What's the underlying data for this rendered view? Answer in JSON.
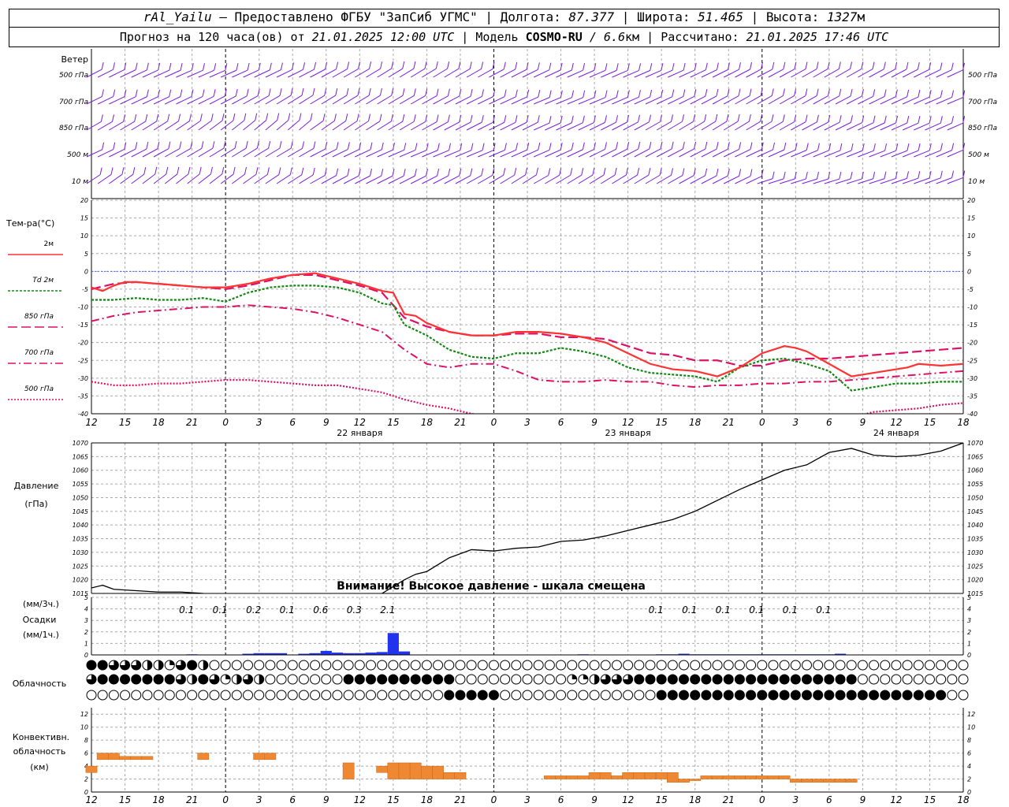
{
  "header": {
    "station": "rAl_Yailu",
    "dash": " – ",
    "provider": "Предоставлено ФГБУ \"ЗапСиб УГМС\"",
    "sep": " | ",
    "lon_label": "Долгота: ",
    "lon": "87.377",
    "lat_label": "Широта: ",
    "lat": "51.465",
    "alt_label": "Высота: ",
    "alt": "1327",
    "alt_unit": "м",
    "forecast_label": "Прогноз на 120 часа(ов) от ",
    "forecast_time": "21.01.2025 12:00 UTC",
    "model_label": "Модель ",
    "model": "COSMO-RU",
    "model_res": " / 6.6",
    "model_res_unit": "км",
    "calc_label": "Рассчитано: ",
    "calc_time": "21.01.2025 17:46 UTC"
  },
  "panels": {
    "wind": {
      "title": "Ветер",
      "levels": [
        "500 гПа",
        "700 гПа",
        "850 гПа",
        "500 м",
        "10  м"
      ]
    },
    "temp": {
      "title": "Тем-ра(°C)",
      "legend": [
        {
          "label": "2м",
          "color": "#ff3333",
          "dash": ""
        },
        {
          "label": "Td  2м",
          "color": "#118811",
          "dash": "3,2"
        },
        {
          "label": "850 гПа",
          "color": "#dd1166",
          "dash": "12,5"
        },
        {
          "label": "700 гПа",
          "color": "#dd1166",
          "dash": "10,4,2,4"
        },
        {
          "label": "500 гПа",
          "color": "#dd1166",
          "dash": "2,2"
        }
      ],
      "yticks": [
        20,
        15,
        10,
        5,
        0,
        -5,
        -10,
        -15,
        -20,
        -25,
        -30,
        -35,
        -40
      ]
    },
    "pressure": {
      "title1": "Давление",
      "title2": "(гПа)",
      "yticks": [
        1070,
        1065,
        1060,
        1055,
        1050,
        1045,
        1040,
        1035,
        1030,
        1025,
        1020,
        1015
      ],
      "warning": "Внимание! Высокое давление - шкала смещена"
    },
    "precip": {
      "unit3": "(мм/3ч.)",
      "title": "Осадки",
      "unit1": "(мм/1ч.)",
      "yticks": [
        5,
        4,
        3,
        2,
        1,
        0
      ],
      "labels": [
        {
          "h": 9,
          "text": "0.1"
        },
        {
          "h": 12,
          "text": "0.1"
        },
        {
          "h": 15,
          "text": "0.2"
        },
        {
          "h": 18,
          "text": "0.1"
        },
        {
          "h": 21,
          "text": "0.6"
        },
        {
          "h": 24,
          "text": "0.3"
        },
        {
          "h": 27,
          "text": "2.1"
        },
        {
          "h": 51,
          "text": "0.1"
        },
        {
          "h": 54,
          "text": "0.1"
        },
        {
          "h": 57,
          "text": "0.1"
        },
        {
          "h": 60,
          "text": "0.1"
        },
        {
          "h": 63,
          "text": "0.1"
        },
        {
          "h": 66,
          "text": "0.1"
        }
      ]
    },
    "cloud": {
      "title": "Облачность"
    },
    "conv": {
      "title1": "Конвективн.",
      "title2": "облачность",
      "title3": "(км)",
      "yticks": [
        12,
        10,
        8,
        6,
        4,
        2,
        0
      ]
    },
    "xaxis": {
      "hour_labels": [
        "12",
        "15",
        "18",
        "21",
        "0",
        "3",
        "6",
        "9",
        "12",
        "15",
        "18",
        "21",
        "0",
        "3",
        "6",
        "9",
        "12",
        "15",
        "18",
        "21",
        "0",
        "3",
        "6",
        "9",
        "12",
        "15",
        "18"
      ],
      "days": [
        {
          "h": 24,
          "text": "22 января"
        },
        {
          "h": 48,
          "text": "23 января"
        },
        {
          "h": 72,
          "text": "24 января"
        }
      ]
    }
  },
  "chart_data": [
    {
      "type": "line",
      "title": "Тем-ра(°C)",
      "x_unit": "hours from 21.01.2025 12:00 UTC",
      "ylim": [
        -40,
        20
      ],
      "series": [
        {
          "name": "2м",
          "x": [
            0,
            1,
            2,
            3,
            4,
            6,
            8,
            10,
            12,
            14,
            16,
            18,
            20,
            22,
            24,
            26,
            27,
            28,
            29,
            30,
            32,
            34,
            36,
            38,
            40,
            42,
            44,
            46,
            48,
            50,
            52,
            54,
            56,
            58,
            60,
            62,
            63,
            64,
            66,
            68,
            70,
            72,
            73,
            74,
            76,
            78
          ],
          "values": [
            -4.5,
            -5.5,
            -4,
            -3,
            -3,
            -3.5,
            -4,
            -4.5,
            -4.5,
            -3.5,
            -2,
            -1,
            -0.5,
            -2,
            -3.5,
            -5.5,
            -6,
            -12,
            -12.5,
            -14.5,
            -17,
            -18,
            -18,
            -17,
            -17,
            -17.5,
            -18.5,
            -20,
            -23,
            -26,
            -27.5,
            -28,
            -29.5,
            -27,
            -23,
            -21,
            -21.5,
            -22.5,
            -26,
            -29.5,
            -28.5,
            -27.5,
            -27,
            -26,
            -26.5,
            -26
          ]
        },
        {
          "name": "Td  2м",
          "x": [
            0,
            2,
            4,
            6,
            8,
            10,
            12,
            14,
            16,
            18,
            20,
            22,
            24,
            26,
            27,
            28,
            30,
            32,
            34,
            36,
            38,
            40,
            42,
            44,
            46,
            48,
            50,
            52,
            54,
            56,
            58,
            60,
            62,
            64,
            66,
            68,
            70,
            72,
            74,
            76,
            78
          ],
          "values": [
            -8,
            -8,
            -7.5,
            -8,
            -8,
            -7.5,
            -8.5,
            -6,
            -4.5,
            -4,
            -4,
            -4.5,
            -6,
            -9,
            -9.5,
            -15,
            -18,
            -22,
            -24,
            -24.5,
            -23,
            -23,
            -21.5,
            -22.5,
            -24,
            -27,
            -28.5,
            -29,
            -29.5,
            -31,
            -27,
            -25,
            -24.5,
            -26,
            -28,
            -33.5,
            -32.5,
            -31.5,
            -31.5,
            -31,
            -31
          ]
        },
        {
          "name": "850 гПа",
          "x": [
            0,
            2,
            4,
            6,
            8,
            10,
            12,
            14,
            16,
            18,
            20,
            22,
            24,
            26,
            28,
            30,
            32,
            34,
            36,
            38,
            40,
            42,
            44,
            46,
            48,
            50,
            52,
            54,
            56,
            58,
            60,
            62,
            64,
            66,
            68,
            70,
            72,
            74,
            76,
            78
          ],
          "values": [
            -5,
            -3.5,
            -3,
            -3.5,
            -4,
            -4.5,
            -5,
            -4,
            -2.5,
            -1,
            -1,
            -2.5,
            -4,
            -6,
            -13,
            -15.5,
            -17,
            -18,
            -18,
            -17.5,
            -17.5,
            -18.5,
            -18.5,
            -19,
            -21,
            -23,
            -23.5,
            -25,
            -25,
            -26.5,
            -26.5,
            -25,
            -24.5,
            -24.5,
            -24,
            -23.5,
            -23,
            -22.5,
            -22,
            -21.5
          ]
        },
        {
          "name": "700 гПа",
          "x": [
            0,
            2,
            4,
            6,
            8,
            10,
            12,
            14,
            16,
            18,
            20,
            22,
            24,
            26,
            28,
            30,
            32,
            34,
            36,
            38,
            40,
            42,
            44,
            46,
            48,
            50,
            52,
            54,
            56,
            58,
            60,
            62,
            64,
            66,
            68,
            70,
            72,
            74,
            76,
            78
          ],
          "values": [
            -14,
            -12.5,
            -11.5,
            -11,
            -10.5,
            -10,
            -10,
            -9.5,
            -10,
            -10.5,
            -11.5,
            -13,
            -15,
            -17,
            -22,
            -26,
            -27,
            -26,
            -26,
            -28,
            -30.5,
            -31,
            -31,
            -30.5,
            -31,
            -31,
            -32,
            -32.5,
            -32,
            -32,
            -31.5,
            -31.5,
            -31,
            -31,
            -30.5,
            -30,
            -29.5,
            -29,
            -28.5,
            -28
          ]
        },
        {
          "name": "500 гПа",
          "x": [
            0,
            2,
            4,
            6,
            8,
            10,
            12,
            14,
            16,
            18,
            20,
            22,
            24,
            26,
            28,
            30,
            32,
            34,
            36,
            68,
            70,
            72,
            74,
            76,
            78
          ],
          "values": [
            -31,
            -32,
            -32,
            -31.5,
            -31.5,
            -31,
            -30.5,
            -30.5,
            -31,
            -31.5,
            -32,
            -32,
            -33,
            -34,
            -36,
            -37.5,
            -38.5,
            -40,
            -41,
            -41,
            -39.5,
            -39,
            -38.5,
            -37.5,
            -37
          ]
        }
      ]
    },
    {
      "type": "line",
      "title": "Давление",
      "x_unit": "hours from 21.01.2025 12:00 UTC",
      "ylim": [
        1015,
        1070
      ],
      "series": [
        {
          "name": "Давление",
          "x": [
            0,
            1,
            2,
            4,
            6,
            8,
            10,
            12,
            14,
            16,
            18,
            20,
            22,
            24,
            26,
            28,
            29,
            30,
            32,
            34,
            36,
            38,
            40,
            42,
            44,
            46,
            48,
            50,
            52,
            54,
            56,
            58,
            60,
            62,
            64,
            66,
            68,
            70,
            72,
            74,
            76,
            78
          ],
          "values": [
            1017,
            1018,
            1016.5,
            1016,
            1015.5,
            1015.5,
            1015,
            1014.8,
            1014.5,
            1014.3,
            1014.2,
            1014.2,
            1014.5,
            1014.5,
            1015,
            1020,
            1022,
            1023,
            1028,
            1031,
            1030.5,
            1031.5,
            1032,
            1034,
            1034.5,
            1036,
            1038,
            1040,
            1042,
            1045,
            1049,
            1053,
            1056.5,
            1060,
            1062,
            1066.5,
            1068,
            1065.5,
            1065,
            1065.5,
            1067,
            1070
          ]
        }
      ]
    },
    {
      "type": "bar",
      "title": "Осадки",
      "x_unit": "hours from 21.01.2025 12:00 UTC",
      "ylim": [
        0,
        5
      ],
      "series": [
        {
          "name": "мм/1ч.",
          "x": [
            9,
            14,
            15,
            16,
            17,
            19,
            20,
            21,
            22,
            23,
            24,
            25,
            26,
            27,
            28,
            44,
            51,
            52,
            53,
            54,
            55,
            56,
            57,
            58,
            59,
            60,
            61,
            62,
            63,
            64,
            65,
            66,
            67
          ],
          "values": [
            0.05,
            0.1,
            0.15,
            0.15,
            0.15,
            0.1,
            0.15,
            0.35,
            0.2,
            0.15,
            0.15,
            0.2,
            0.25,
            1.9,
            0.3,
            0.05,
            0.05,
            0.05,
            0.1,
            0.05,
            0.05,
            0.05,
            0.05,
            0.05,
            0.05,
            0.05,
            0.05,
            0.05,
            0.05,
            0.05,
            0.05,
            0.05,
            0.1
          ]
        }
      ]
    },
    {
      "type": "bar",
      "title": "Конвективн. облачность",
      "x_unit": "hours from 21.01.2025 12:00 UTC",
      "ylim": [
        0,
        13
      ],
      "series": [
        {
          "name": "base-top (км)",
          "x": [
            0,
            1,
            2,
            3,
            4,
            5,
            10,
            15,
            16,
            23,
            26,
            27,
            28,
            29,
            30,
            31,
            32,
            33,
            41,
            42,
            43,
            44,
            45,
            46,
            47,
            48,
            49,
            50,
            51,
            52,
            53,
            54,
            55,
            56,
            57,
            58,
            59,
            60,
            61,
            62,
            63,
            64,
            65,
            66,
            67,
            68
          ],
          "base": [
            3,
            5,
            5,
            5,
            5,
            5,
            5,
            5,
            5,
            2,
            3,
            2,
            2,
            2,
            2,
            2,
            2,
            2,
            2,
            2,
            2,
            2,
            2,
            2,
            2,
            2,
            2,
            2,
            2,
            1.5,
            1.5,
            2,
            2,
            2,
            2,
            2,
            2,
            2,
            2,
            2,
            1.5,
            1.5,
            1.5,
            1.5,
            1.5,
            1.5
          ],
          "top": [
            4,
            6,
            6,
            5.5,
            5.5,
            5.5,
            6,
            6,
            6,
            4.5,
            4,
            4.5,
            4.5,
            4.5,
            4,
            4,
            3,
            3,
            2.5,
            2.5,
            2.5,
            2.5,
            3,
            3,
            2.5,
            3,
            3,
            3,
            3,
            3,
            2,
            2,
            2.5,
            2.5,
            2.5,
            2.5,
            2.5,
            2.5,
            2.5,
            2.5,
            2,
            2,
            2,
            2,
            2,
            2
          ]
        }
      ]
    },
    {
      "type": "table",
      "title": "Облачность",
      "rows": [
        "high: ●●◕◕◕◑◑◔◕●◑○○○○○○○○○○○○○○○○○○○○○○○○○○○○○○○○○○○○○○○○○○○○○○○○○○○○○○○○○○○○○○○○○○○○○○○○○○○○○○○○○○○○○○○○○○○○○○○○○○○○○○",
        "mid: ◕●●●●●●●◕◑●◕◔◑◕◑○○○○○○○●●●●●●●●●●○○○○○○○○○○◔◔◑◕◕◕●●●●●●●●●●●●●●●●●●●●○○○○○○○○○○○○○○○○○○○○○○○○○○○○○○○○○○○○",
        "low: ○○○○○○○○○○○○○○○○○○○○○○○○○○○○○○○○●●●●●○○○○○○○○○○○○○○●●●●●●●●●●●●●●●●●●●●●●●●●●○○○○○○○○○○○○○○○○○○○○○○○○○○○○○○"
      ]
    }
  ]
}
